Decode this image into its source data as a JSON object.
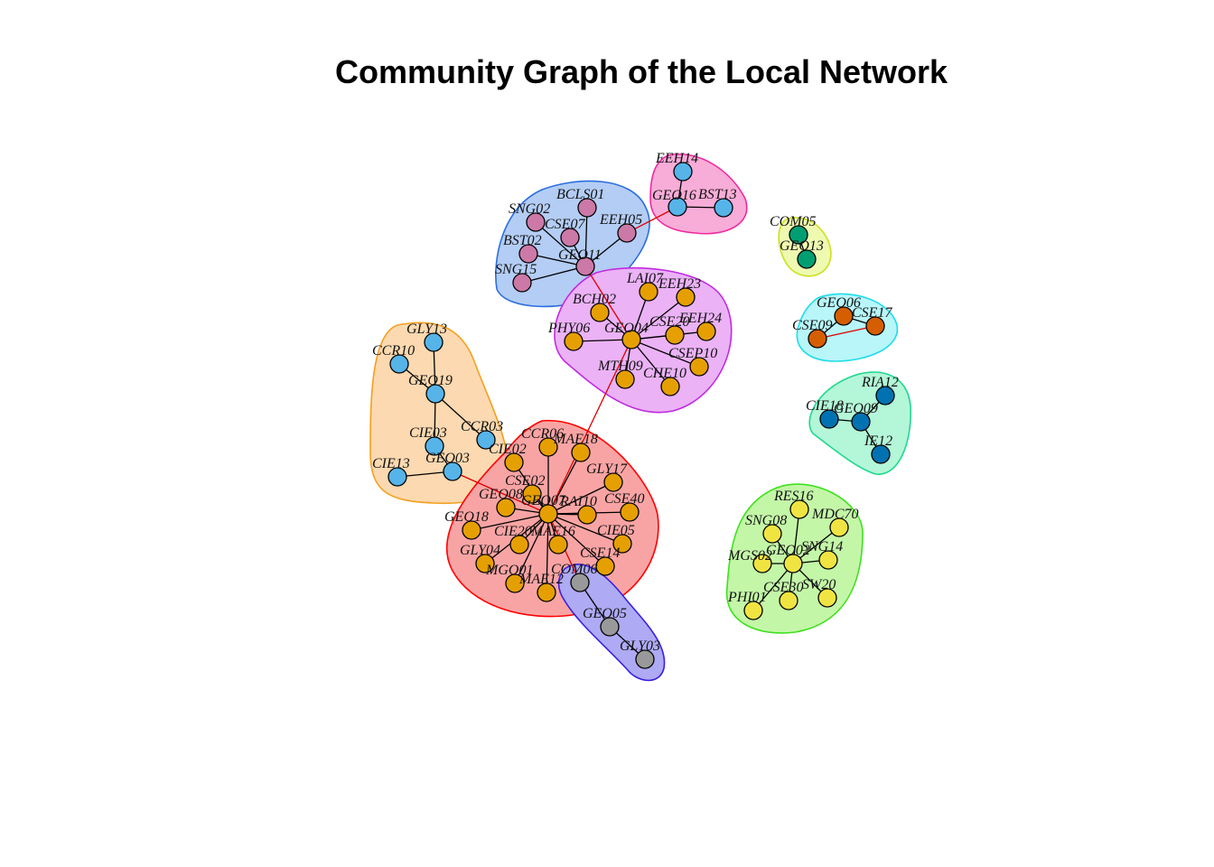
{
  "title": "Community Graph of the Local Network",
  "communities": [
    {
      "id": "c-red",
      "fill": "#f9a4a4",
      "stroke": "#ff0000"
    },
    {
      "id": "c-orange",
      "fill": "#fcd9b0",
      "stroke": "#f4a020"
    },
    {
      "id": "c-blue",
      "fill": "#b4cdf4",
      "stroke": "#2a6ee0"
    },
    {
      "id": "c-pink",
      "fill": "#f8acd8",
      "stroke": "#ee2aa0"
    },
    {
      "id": "c-purple",
      "fill": "#ebb2f6",
      "stroke": "#c02ae0"
    },
    {
      "id": "c-yellowgreen",
      "fill": "#eefab0",
      "stroke": "#cde020"
    },
    {
      "id": "c-cyan",
      "fill": "#b8f6fa",
      "stroke": "#20dce8"
    },
    {
      "id": "c-green",
      "fill": "#b4f6d8",
      "stroke": "#20d890"
    },
    {
      "id": "c-lime",
      "fill": "#c4f6a8",
      "stroke": "#40e020"
    },
    {
      "id": "c-violet",
      "fill": "#aeaaf4",
      "stroke": "#3a20e0"
    }
  ],
  "node_colors": {
    "orange": "#e69f00",
    "skyblue": "#56b4e9",
    "mauve": "#cc79a7",
    "teal": "#009e73",
    "vermilion": "#d55e00",
    "darkblue": "#0072b2",
    "yellow": "#f0e442",
    "grey": "#999999"
  },
  "nodes": [
    {
      "id": "GEO11",
      "label": "GEO11",
      "color": "mauve"
    },
    {
      "id": "BCLS01",
      "label": "BCLS01",
      "color": "mauve"
    },
    {
      "id": "SNG02",
      "label": "SNG02",
      "color": "mauve"
    },
    {
      "id": "CSE07",
      "label": "CSE07",
      "color": "mauve"
    },
    {
      "id": "EEH05",
      "label": "EEH05",
      "color": "mauve"
    },
    {
      "id": "BST02",
      "label": "BST02",
      "color": "mauve"
    },
    {
      "id": "SNG15",
      "label": "SNG15",
      "color": "mauve"
    },
    {
      "id": "EEH14",
      "label": "EEH14",
      "color": "skyblue"
    },
    {
      "id": "GEO16",
      "label": "GEO16",
      "color": "skyblue"
    },
    {
      "id": "BST13",
      "label": "BST13",
      "color": "skyblue"
    },
    {
      "id": "COM05",
      "label": "COM05",
      "color": "teal"
    },
    {
      "id": "GEO13",
      "label": "GEO13",
      "color": "teal"
    },
    {
      "id": "GEO04",
      "label": "GEO04",
      "color": "orange"
    },
    {
      "id": "LAI07",
      "label": "LAI07",
      "color": "orange"
    },
    {
      "id": "EEH23",
      "label": "EEH23",
      "color": "orange"
    },
    {
      "id": "BCH02",
      "label": "BCH02",
      "color": "orange"
    },
    {
      "id": "PHY06",
      "label": "PHY06",
      "color": "orange"
    },
    {
      "id": "CSE20",
      "label": "CSE20",
      "color": "orange"
    },
    {
      "id": "EEH24",
      "label": "EEH24",
      "color": "orange"
    },
    {
      "id": "CSEP10",
      "label": "CSEP10",
      "color": "orange"
    },
    {
      "id": "MTH09",
      "label": "MTH09",
      "color": "orange"
    },
    {
      "id": "CHE10",
      "label": "CHE10",
      "color": "orange"
    },
    {
      "id": "GEO06",
      "label": "GEO06",
      "color": "vermilion"
    },
    {
      "id": "CSE09",
      "label": "CSE09",
      "color": "vermilion"
    },
    {
      "id": "CSE17",
      "label": "CSE17",
      "color": "vermilion"
    },
    {
      "id": "RIA12",
      "label": "RIA12",
      "color": "darkblue"
    },
    {
      "id": "CIE18",
      "label": "CIE18",
      "color": "darkblue"
    },
    {
      "id": "GEO09",
      "label": "GEO09",
      "color": "darkblue"
    },
    {
      "id": "IE12",
      "label": "IE12",
      "color": "darkblue"
    },
    {
      "id": "GLY13",
      "label": "GLY13",
      "color": "skyblue"
    },
    {
      "id": "CCR10",
      "label": "CCR10",
      "color": "skyblue"
    },
    {
      "id": "GEO19",
      "label": "GEO19",
      "color": "skyblue"
    },
    {
      "id": "CIE03",
      "label": "CIE03",
      "color": "skyblue"
    },
    {
      "id": "CCR03",
      "label": "CCR03",
      "color": "skyblue"
    },
    {
      "id": "CIE13",
      "label": "CIE13",
      "color": "skyblue"
    },
    {
      "id": "GEO03",
      "label": "GEO03",
      "color": "skyblue"
    },
    {
      "id": "GEO07",
      "label": "GEO07",
      "color": "orange"
    },
    {
      "id": "CCR06",
      "label": "CCR06",
      "color": "orange"
    },
    {
      "id": "MAE18",
      "label": "MAE18",
      "color": "orange"
    },
    {
      "id": "CIE02",
      "label": "CIE02",
      "color": "orange"
    },
    {
      "id": "GLY17",
      "label": "GLY17",
      "color": "orange"
    },
    {
      "id": "CSE02",
      "label": "CSE02",
      "color": "orange"
    },
    {
      "id": "GEO08",
      "label": "GEO08",
      "color": "orange"
    },
    {
      "id": "RAI10",
      "label": "RAI10",
      "color": "orange"
    },
    {
      "id": "CSE40",
      "label": "CSE40",
      "color": "orange"
    },
    {
      "id": "GEO18",
      "label": "GEO18",
      "color": "orange"
    },
    {
      "id": "CIE20",
      "label": "CIE20",
      "color": "orange"
    },
    {
      "id": "MAE16",
      "label": "MAE16",
      "color": "orange"
    },
    {
      "id": "CIE05",
      "label": "CIE05",
      "color": "orange"
    },
    {
      "id": "GLY04",
      "label": "GLY04",
      "color": "orange"
    },
    {
      "id": "CSE14",
      "label": "CSE14",
      "color": "orange"
    },
    {
      "id": "MGO01",
      "label": "MGO01",
      "color": "orange"
    },
    {
      "id": "MAE12",
      "label": "MAE12",
      "color": "orange"
    },
    {
      "id": "COM06",
      "label": "COM06",
      "color": "grey"
    },
    {
      "id": "GEO05",
      "label": "GEO05",
      "color": "grey"
    },
    {
      "id": "GLY03",
      "label": "GLY03",
      "color": "grey"
    },
    {
      "id": "RES16",
      "label": "RES16",
      "color": "yellow"
    },
    {
      "id": "SNG08",
      "label": "SNG08",
      "color": "yellow"
    },
    {
      "id": "MDC70",
      "label": "MDC70",
      "color": "yellow"
    },
    {
      "id": "MGS02",
      "label": "MGS02",
      "color": "yellow"
    },
    {
      "id": "GEO02",
      "label": "GEO02",
      "color": "yellow"
    },
    {
      "id": "SNG14",
      "label": "SNG14",
      "color": "yellow"
    },
    {
      "id": "CSE30",
      "label": "CSE30",
      "color": "yellow"
    },
    {
      "id": "SW20",
      "label": "SW20",
      "color": "yellow"
    },
    {
      "id": "PHI01",
      "label": "PHI01",
      "color": "yellow"
    }
  ],
  "edges": [
    {
      "s": "GEO11",
      "t": "BCLS01"
    },
    {
      "s": "GEO11",
      "t": "SNG02"
    },
    {
      "s": "GEO11",
      "t": "CSE07"
    },
    {
      "s": "GEO11",
      "t": "EEH05"
    },
    {
      "s": "GEO11",
      "t": "BST02"
    },
    {
      "s": "GEO11",
      "t": "SNG15"
    },
    {
      "s": "EEH14",
      "t": "GEO16"
    },
    {
      "s": "GEO16",
      "t": "BST13"
    },
    {
      "s": "COM05",
      "t": "GEO13"
    },
    {
      "s": "GEO04",
      "t": "LAI07"
    },
    {
      "s": "GEO04",
      "t": "EEH23"
    },
    {
      "s": "GEO04",
      "t": "BCH02"
    },
    {
      "s": "GEO04",
      "t": "PHY06"
    },
    {
      "s": "GEO04",
      "t": "CSE20"
    },
    {
      "s": "GEO04",
      "t": "EEH24"
    },
    {
      "s": "GEO04",
      "t": "CSEP10"
    },
    {
      "s": "GEO04",
      "t": "MTH09"
    },
    {
      "s": "GEO04",
      "t": "CHE10"
    },
    {
      "s": "GEO06",
      "t": "CSE09"
    },
    {
      "s": "GEO06",
      "t": "CSE17"
    },
    {
      "s": "CIE18",
      "t": "GEO09"
    },
    {
      "s": "GEO09",
      "t": "RIA12"
    },
    {
      "s": "GEO09",
      "t": "IE12"
    },
    {
      "s": "GLY13",
      "t": "GEO19"
    },
    {
      "s": "CCR10",
      "t": "GEO19"
    },
    {
      "s": "GEO19",
      "t": "CIE03"
    },
    {
      "s": "GEO19",
      "t": "CCR03"
    },
    {
      "s": "CIE03",
      "t": "GEO03"
    },
    {
      "s": "CIE13",
      "t": "GEO03"
    },
    {
      "s": "GEO07",
      "t": "CCR06"
    },
    {
      "s": "GEO07",
      "t": "MAE18"
    },
    {
      "s": "GEO07",
      "t": "CIE02"
    },
    {
      "s": "GEO07",
      "t": "GLY17"
    },
    {
      "s": "GEO07",
      "t": "CSE02"
    },
    {
      "s": "GEO07",
      "t": "GEO08"
    },
    {
      "s": "GEO07",
      "t": "RAI10"
    },
    {
      "s": "GEO07",
      "t": "CSE40"
    },
    {
      "s": "GEO07",
      "t": "GEO18"
    },
    {
      "s": "GEO07",
      "t": "CIE20"
    },
    {
      "s": "GEO07",
      "t": "MAE16"
    },
    {
      "s": "GEO07",
      "t": "CIE05"
    },
    {
      "s": "GEO07",
      "t": "GLY04"
    },
    {
      "s": "GEO07",
      "t": "CSE14"
    },
    {
      "s": "GEO07",
      "t": "MGO01"
    },
    {
      "s": "GEO07",
      "t": "MAE12"
    },
    {
      "s": "COM06",
      "t": "GEO05"
    },
    {
      "s": "GEO05",
      "t": "GLY03"
    },
    {
      "s": "GEO02",
      "t": "RES16"
    },
    {
      "s": "GEO02",
      "t": "SNG08"
    },
    {
      "s": "GEO02",
      "t": "MDC70"
    },
    {
      "s": "GEO02",
      "t": "MGS02"
    },
    {
      "s": "GEO02",
      "t": "SNG14"
    },
    {
      "s": "GEO02",
      "t": "CSE30"
    },
    {
      "s": "GEO02",
      "t": "SW20"
    },
    {
      "s": "GEO02",
      "t": "PHI01"
    }
  ],
  "cross_edges": [
    {
      "s": "EEH05",
      "t": "GEO16"
    },
    {
      "s": "GEO11",
      "t": "GEO04"
    },
    {
      "s": "GEO04",
      "t": "GEO07"
    },
    {
      "s": "GEO03",
      "t": "GEO07"
    },
    {
      "s": "GEO07",
      "t": "COM06"
    },
    {
      "s": "CSE09",
      "t": "CSE17"
    }
  ]
}
